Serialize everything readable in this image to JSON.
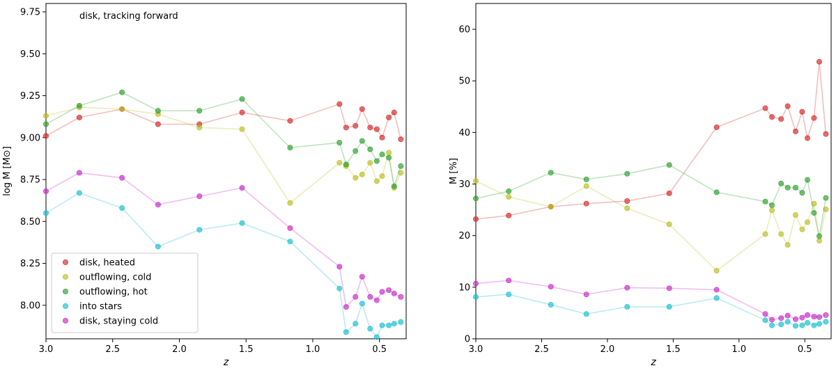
{
  "chart_data": [
    {
      "type": "line",
      "annotation": "disk, tracking forward",
      "xlabel": "z",
      "ylabel": "log M  [M⊙]",
      "xlim": [
        3.0,
        0.3
      ],
      "ylim": [
        7.8,
        9.8
      ],
      "xticks": [
        "3.0",
        "2.5",
        "2.0",
        "1.5",
        "1.0",
        "0.5"
      ],
      "yticks": [
        "8.00",
        "8.25",
        "8.50",
        "8.75",
        "9.00",
        "9.25",
        "9.50",
        "9.75"
      ],
      "legend": {
        "placement": "lower-left"
      },
      "x": [
        3.0,
        2.75,
        2.43,
        2.16,
        1.85,
        1.53,
        1.17,
        0.8,
        0.75,
        0.68,
        0.63,
        0.57,
        0.52,
        0.48,
        0.43,
        0.39,
        0.34
      ],
      "series": [
        {
          "name": "disk, heated",
          "color": "#d62728",
          "values": [
            9.01,
            9.12,
            9.17,
            9.08,
            9.08,
            9.15,
            9.1,
            9.2,
            9.06,
            9.07,
            9.17,
            9.06,
            9.05,
            9.0,
            9.12,
            9.15,
            8.99
          ]
        },
        {
          "name": "outflowing, cold",
          "color": "#bcbd22",
          "values": [
            9.13,
            9.18,
            9.17,
            9.14,
            9.06,
            9.05,
            8.61,
            8.85,
            8.83,
            8.76,
            8.78,
            8.85,
            8.74,
            8.77,
            8.91,
            8.7,
            8.79
          ]
        },
        {
          "name": "outflowing, hot",
          "color": "#2ca02c",
          "values": [
            9.08,
            9.19,
            9.27,
            9.16,
            9.16,
            9.23,
            8.94,
            8.97,
            8.84,
            8.92,
            8.98,
            8.93,
            8.86,
            8.9,
            8.88,
            8.71,
            8.83
          ]
        },
        {
          "name": "into stars",
          "color": "#17becf",
          "values": [
            8.55,
            8.67,
            8.58,
            8.35,
            8.45,
            8.49,
            8.38,
            8.1,
            7.84,
            7.89,
            8.01,
            7.86,
            7.81,
            7.88,
            7.88,
            7.89,
            7.9
          ]
        },
        {
          "name": "disk, staying cold",
          "color": "#c828c8",
          "values": [
            8.68,
            8.79,
            8.76,
            8.6,
            8.65,
            8.7,
            8.46,
            8.23,
            7.99,
            8.05,
            8.17,
            8.05,
            8.03,
            8.08,
            8.09,
            8.07,
            8.05
          ]
        }
      ]
    },
    {
      "type": "line",
      "xlabel": "z",
      "ylabel": "M [%]",
      "xlim": [
        3.0,
        0.3
      ],
      "ylim": [
        0,
        65
      ],
      "xticks": [
        "3.0",
        "2.5",
        "2.0",
        "1.5",
        "1.0",
        "0.5"
      ],
      "yticks": [
        "0",
        "10",
        "20",
        "30",
        "40",
        "50",
        "60"
      ],
      "x": [
        3.0,
        2.75,
        2.43,
        2.16,
        1.85,
        1.53,
        1.17,
        0.8,
        0.75,
        0.68,
        0.63,
        0.57,
        0.52,
        0.48,
        0.43,
        0.39,
        0.34
      ],
      "series": [
        {
          "color": "#d62728",
          "values": [
            23.2,
            23.9,
            25.6,
            26.2,
            26.7,
            28.2,
            41.0,
            44.7,
            43.0,
            42.6,
            45.1,
            40.2,
            44.0,
            38.9,
            42.8,
            53.7,
            39.7
          ]
        },
        {
          "color": "#bcbd22",
          "values": [
            30.6,
            27.5,
            25.6,
            29.6,
            25.3,
            22.2,
            13.2,
            20.3,
            24.9,
            20.3,
            18.2,
            24.0,
            21.2,
            22.6,
            26.2,
            19.0,
            25.1
          ]
        },
        {
          "color": "#2ca02c",
          "values": [
            27.2,
            28.6,
            32.2,
            30.9,
            32.0,
            33.7,
            28.4,
            26.6,
            25.9,
            30.1,
            29.3,
            29.3,
            28.3,
            30.8,
            24.4,
            19.9,
            27.3
          ]
        },
        {
          "color": "#17becf",
          "values": [
            8.1,
            8.6,
            6.6,
            4.8,
            6.2,
            6.2,
            7.9,
            3.6,
            2.6,
            2.8,
            3.3,
            2.5,
            2.6,
            3.1,
            2.6,
            2.9,
            3.3
          ]
        },
        {
          "color": "#c828c8",
          "values": [
            10.7,
            11.3,
            10.1,
            8.6,
            9.9,
            9.8,
            9.5,
            4.8,
            3.7,
            4.0,
            4.5,
            3.8,
            4.1,
            4.6,
            4.3,
            4.2,
            4.6
          ]
        }
      ]
    }
  ]
}
